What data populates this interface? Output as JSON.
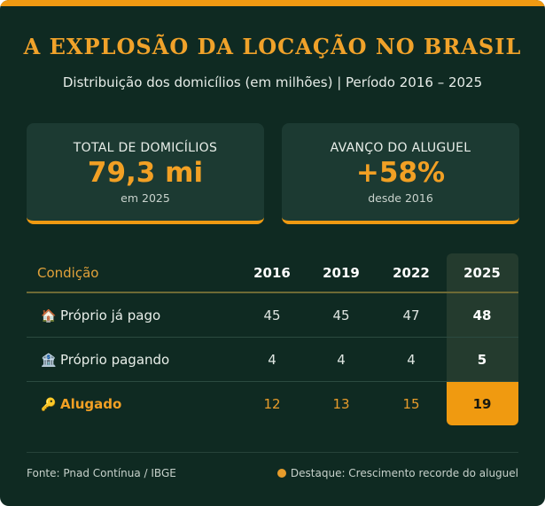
{
  "header": {
    "title": "A EXPLOSÃO DA LOCAÇÃO NO BRASIL",
    "subtitle": "Distribuição dos domicílios (em milhões) | Período 2016 – 2025"
  },
  "stats": [
    {
      "label": "TOTAL DE DOMICÍLIOS",
      "value": "79,3 mi",
      "note": "em 2025"
    },
    {
      "label": "AVANÇO DO ALUGUEL",
      "value": "+58%",
      "note": "desde 2016"
    }
  ],
  "chart_data": {
    "type": "table",
    "column_header": "Condição",
    "categories": [
      "2016",
      "2019",
      "2022",
      "2025"
    ],
    "highlight_column": "2025",
    "series": [
      {
        "name": "Próprio já pago",
        "icon": "house-icon",
        "values": [
          45,
          45,
          47,
          48
        ]
      },
      {
        "name": "Próprio pagando",
        "icon": "bank-icon",
        "values": [
          4,
          4,
          4,
          5
        ]
      },
      {
        "name": "Alugado",
        "icon": "key-icon",
        "values": [
          12,
          13,
          15,
          19
        ]
      }
    ]
  },
  "footer": {
    "source": "Fonte: Pnad Contínua / IBGE",
    "legend": "Destaque: Crescimento recorde do aluguel"
  },
  "colors": {
    "accent": "#ef9a12",
    "background": "#0f2a22",
    "panel": "#1c3a32"
  }
}
